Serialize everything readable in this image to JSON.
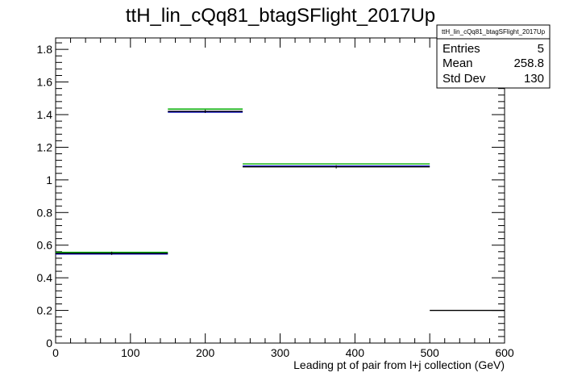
{
  "chart_data": {
    "type": "bar",
    "title": "ttH_lin_cQq81_btagSFlight_2017Up",
    "xlabel": "Leading pt of pair from l+j collection (GeV)",
    "ylabel": "",
    "xlim": [
      0,
      600
    ],
    "ylim": [
      0,
      1.87
    ],
    "x_ticks": [
      0,
      100,
      200,
      300,
      400,
      500,
      600
    ],
    "x_tick_labels": [
      "0",
      "100",
      "200",
      "300",
      "400",
      "500",
      "600"
    ],
    "y_ticks": [
      0,
      0.2,
      0.4,
      0.6,
      0.8,
      1,
      1.2,
      1.4,
      1.6,
      1.8
    ],
    "y_tick_labels": [
      "0",
      "0.2",
      "0.4",
      "0.6",
      "0.8",
      "1",
      "1.2",
      "1.4",
      "1.6",
      "1.8"
    ],
    "grid": false,
    "legend": "none",
    "bins": [
      {
        "low": 0,
        "high": 150,
        "value": 0.55
      },
      {
        "low": 150,
        "high": 250,
        "value": 1.42
      },
      {
        "low": 250,
        "high": 500,
        "value": 1.08
      },
      {
        "low": 500,
        "high": 600,
        "value": 0.2
      }
    ],
    "series": [
      {
        "color": "#000000",
        "values": [
          0.55,
          1.42,
          1.08,
          0.2
        ]
      },
      {
        "color": "#0000cc",
        "values": [
          0.546,
          1.415,
          1.085,
          null
        ]
      },
      {
        "color": "#00aa00",
        "values": [
          0.556,
          1.434,
          1.098,
          null
        ]
      }
    ],
    "stats_box": {
      "title": "ttH_lin_cQq81_btagSFlight_2017Up",
      "rows": [
        {
          "label": "Entries",
          "value": "5"
        },
        {
          "label": "Mean",
          "value": "258.8"
        },
        {
          "label": "Std Dev",
          "value": "130"
        }
      ]
    }
  }
}
